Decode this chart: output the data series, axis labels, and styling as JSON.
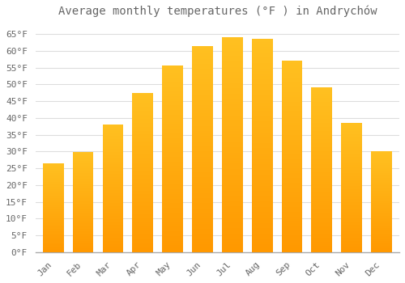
{
  "title": "Average monthly temperatures (°F ) in Andrychów",
  "months": [
    "Jan",
    "Feb",
    "Mar",
    "Apr",
    "May",
    "Jun",
    "Jul",
    "Aug",
    "Sep",
    "Oct",
    "Nov",
    "Dec"
  ],
  "values": [
    26.5,
    29.8,
    38.0,
    47.5,
    55.5,
    61.5,
    64.0,
    63.5,
    57.0,
    49.0,
    38.5,
    30.0
  ],
  "bar_color_top": "#FFC020",
  "bar_color_bottom": "#FF9800",
  "background_color": "#ffffff",
  "grid_color": "#dddddd",
  "text_color": "#666666",
  "ylim": [
    0,
    68
  ],
  "yticks": [
    0,
    5,
    10,
    15,
    20,
    25,
    30,
    35,
    40,
    45,
    50,
    55,
    60,
    65
  ],
  "ytick_labels": [
    "0°F",
    "5°F",
    "10°F",
    "15°F",
    "20°F",
    "25°F",
    "30°F",
    "35°F",
    "40°F",
    "45°F",
    "50°F",
    "55°F",
    "60°F",
    "65°F"
  ],
  "title_fontsize": 10,
  "tick_fontsize": 8,
  "bar_width": 0.7,
  "num_segments": 80
}
